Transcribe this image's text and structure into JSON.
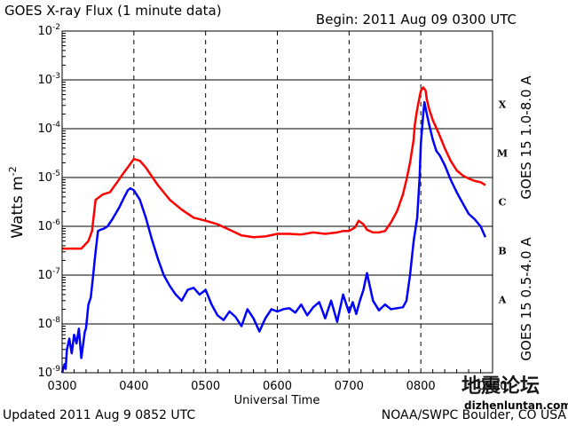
{
  "header": {
    "title": "GOES X-ray Flux (1 minute data)",
    "begin": "Begin: 2011 Aug 09 0300 UTC"
  },
  "footer": {
    "updated": "Updated 2011 Aug  9 0852 UTC",
    "credit": "NOAA/SWPC Boulder, CO USA"
  },
  "watermark": {
    "text_cn": "地震论坛",
    "url": "dizhenluntan.com"
  },
  "colors": {
    "long_channel": "#ff0000",
    "short_channel": "#0000ff",
    "grid": "#000000",
    "watermark": "#ff8c00"
  },
  "chart_data": {
    "type": "line",
    "title": "GOES X-ray Flux (1 minute data)",
    "xlabel": "Universal Time",
    "ylabel": "Watts m",
    "ylabel_superscript": "-2",
    "xlim": [
      0,
      360
    ],
    "ylim": [
      1e-09,
      0.01
    ],
    "yscale": "log",
    "grid": "horizontal solid at decades, vertical dashed at hours",
    "x_ticks": [
      {
        "value": 0,
        "label": "0300"
      },
      {
        "value": 60,
        "label": "0400"
      },
      {
        "value": 120,
        "label": "0500"
      },
      {
        "value": 180,
        "label": "0600"
      },
      {
        "value": 240,
        "label": "0700"
      },
      {
        "value": 300,
        "label": "0800"
      },
      {
        "value": 360,
        "label": "0900"
      }
    ],
    "y_ticks": [
      {
        "exp": -9,
        "label": "10",
        "sup": "-9"
      },
      {
        "exp": -8,
        "label": "10",
        "sup": "-8"
      },
      {
        "exp": -7,
        "label": "10",
        "sup": "-7"
      },
      {
        "exp": -6,
        "label": "10",
        "sup": "-6"
      },
      {
        "exp": -5,
        "label": "10",
        "sup": "-5"
      },
      {
        "exp": -4,
        "label": "10",
        "sup": "-4"
      },
      {
        "exp": -3,
        "label": "10",
        "sup": "-3"
      },
      {
        "exp": -2,
        "label": "10",
        "sup": "-2"
      }
    ],
    "flare_classes": [
      {
        "label": "X",
        "exp": -3.5
      },
      {
        "label": "M",
        "exp": -4.5
      },
      {
        "label": "C",
        "exp": -5.5
      },
      {
        "label": "B",
        "exp": -6.5
      },
      {
        "label": "A",
        "exp": -7.5
      }
    ],
    "series": [
      {
        "name": "GOES 15 1.0-8.0 A",
        "color": "#ff0000",
        "x": [
          0,
          16,
          22,
          25,
          28,
          34,
          40,
          46,
          52,
          57,
          60,
          65,
          70,
          80,
          90,
          100,
          110,
          120,
          130,
          140,
          150,
          160,
          170,
          180,
          190,
          200,
          210,
          220,
          230,
          235,
          240,
          245,
          248,
          252,
          255,
          260,
          265,
          270,
          275,
          280,
          285,
          288,
          291,
          294,
          295,
          297,
          299,
          300,
          302,
          304,
          305,
          307,
          310,
          315,
          320,
          325,
          330,
          335,
          340,
          345,
          350,
          354
        ],
        "y": [
          3.5e-07,
          3.5e-07,
          5e-07,
          8e-07,
          3.5e-06,
          4.5e-06,
          5e-06,
          8e-06,
          1.3e-05,
          1.9e-05,
          2.4e-05,
          2.2e-05,
          1.6e-05,
          7e-06,
          3.5e-06,
          2.2e-06,
          1.5e-06,
          1.3e-06,
          1.1e-06,
          8.5e-07,
          6.5e-07,
          6e-07,
          6.2e-07,
          7e-07,
          7e-07,
          6.8e-07,
          7.5e-07,
          7e-07,
          7.5e-07,
          8e-07,
          8e-07,
          9.5e-07,
          1.3e-06,
          1.1e-06,
          8.5e-07,
          7.5e-07,
          7.5e-07,
          8e-07,
          1.2e-06,
          2e-06,
          4.5e-06,
          9e-06,
          2e-05,
          6e-05,
          0.00012,
          0.00025,
          0.00045,
          0.0006,
          0.0007,
          0.0006,
          0.0004,
          0.00025,
          0.00015,
          8e-05,
          4e-05,
          2.2e-05,
          1.4e-05,
          1.1e-05,
          9.5e-06,
          8.5e-06,
          8e-06,
          7e-06
        ]
      },
      {
        "name": "GOES 15 0.5-4.0 A",
        "color": "#0000ff",
        "x": [
          0,
          2,
          3,
          4,
          6,
          8,
          10,
          12,
          14,
          16,
          19,
          20,
          22,
          24,
          26,
          28,
          30,
          32,
          35,
          38,
          42,
          48,
          52,
          55,
          57,
          60,
          65,
          70,
          75,
          80,
          85,
          90,
          95,
          100,
          105,
          110,
          115,
          120,
          125,
          130,
          135,
          140,
          145,
          150,
          155,
          160,
          165,
          170,
          175,
          180,
          185,
          190,
          195,
          200,
          205,
          210,
          215,
          220,
          225,
          230,
          235,
          240,
          243,
          246,
          249,
          252,
          255,
          260,
          265,
          270,
          275,
          280,
          285,
          288,
          291,
          294,
          297,
          299,
          300,
          302,
          303,
          305,
          307,
          310,
          313,
          316,
          320,
          325,
          330,
          335,
          340,
          345,
          350,
          354
        ],
        "y": [
          1e-09,
          1.5e-09,
          1.2e-09,
          3e-09,
          5e-09,
          2.5e-09,
          6e-09,
          4e-09,
          8e-09,
          2e-09,
          7e-09,
          8e-09,
          2.5e-08,
          3.5e-08,
          1e-07,
          3e-07,
          8e-07,
          8.5e-07,
          9e-07,
          1e-06,
          1.4e-06,
          2.5e-06,
          4e-06,
          5.5e-06,
          6e-06,
          5.5e-06,
          3.5e-06,
          1.5e-06,
          5.5e-07,
          2.2e-07,
          1e-07,
          6e-08,
          4e-08,
          3e-08,
          5e-08,
          5.5e-08,
          4e-08,
          5e-08,
          2.5e-08,
          1.5e-08,
          1.2e-08,
          1.8e-08,
          1.4e-08,
          9e-09,
          2e-08,
          1.3e-08,
          7e-09,
          1.3e-08,
          2e-08,
          1.8e-08,
          2e-08,
          2.1e-08,
          1.7e-08,
          2.5e-08,
          1.5e-08,
          2.2e-08,
          2.8e-08,
          1.3e-08,
          3e-08,
          1.1e-08,
          4e-08,
          1.7e-08,
          2.8e-08,
          1.6e-08,
          3e-08,
          5e-08,
          1.1e-07,
          3e-08,
          1.9e-08,
          2.5e-08,
          2e-08,
          2.1e-08,
          2.2e-08,
          3e-08,
          1e-07,
          5e-07,
          1.5e-06,
          1e-05,
          5e-05,
          0.0002,
          0.00035,
          0.0002,
          0.00012,
          6e-05,
          3.5e-05,
          2.8e-05,
          1.8e-05,
          9e-06,
          5e-06,
          3e-06,
          1.8e-06,
          1.4e-06,
          1e-06,
          6e-07
        ]
      }
    ]
  }
}
